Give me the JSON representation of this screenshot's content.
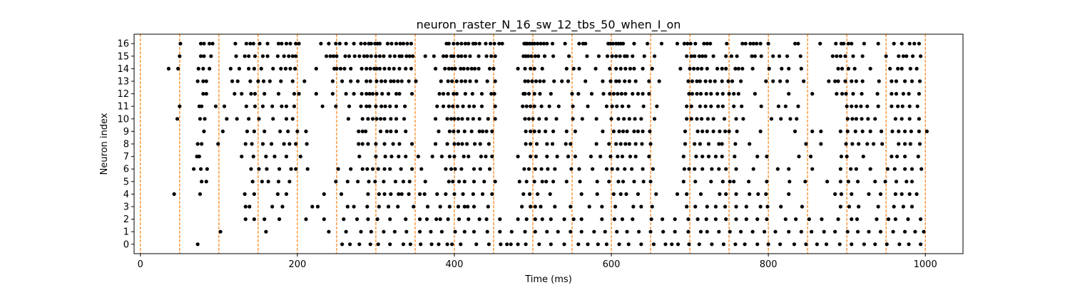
{
  "chart_data": {
    "type": "scatter",
    "title": "neuron_raster_N_16_sw_12_tbs_50_when_I_on",
    "xlabel": "Time (ms)",
    "ylabel": "Neuron index",
    "xlim": [
      -8,
      1048
    ],
    "ylim": [
      -0.75,
      16.75
    ],
    "x_ticks": [
      0,
      200,
      400,
      600,
      800,
      1000
    ],
    "y_ticks": [
      0,
      1,
      2,
      3,
      4,
      5,
      6,
      7,
      8,
      9,
      10,
      11,
      12,
      13,
      14,
      15,
      16
    ],
    "grid": false,
    "legend": "none",
    "marker_color": "#000000",
    "vline_color": "#ff7f0e",
    "vlines": [
      0,
      50,
      100,
      150,
      200,
      250,
      300,
      350,
      400,
      450,
      500,
      550,
      600,
      650,
      700,
      750,
      800,
      850,
      900,
      950,
      1000
    ],
    "spikes": [
      {
        "neuron": 16,
        "times": [
          51,
          77,
          81,
          88,
          92,
          121,
          135,
          140,
          144,
          152,
          162,
          176,
          180,
          186,
          191,
          198,
          202,
          230,
          240,
          249,
          254,
          262,
          272,
          281,
          286,
          291,
          294,
          299,
          302,
          305,
          315,
          320,
          326,
          331,
          335,
          340,
          345,
          390,
          393,
          399,
          404,
          409,
          414,
          418,
          424,
          427,
          432,
          440,
          446,
          451,
          457,
          461,
          489,
          491,
          493,
          496,
          499,
          502,
          506,
          510,
          514,
          518,
          525,
          541,
          559,
          564,
          567,
          596,
          599,
          602,
          606,
          609,
          612,
          615,
          629,
          646,
          664,
          684,
          693,
          697,
          701,
          707,
          718,
          722,
          726,
          747,
          767,
          771,
          777,
          781,
          785,
          790,
          800,
          834,
          838,
          866,
          886,
          893,
          896,
          902,
          906,
          922,
          940,
          960,
          970,
          980,
          986,
          992
        ]
      },
      {
        "neuron": 15,
        "times": [
          50,
          77,
          81,
          90,
          122,
          133,
          138,
          146,
          156,
          162,
          175,
          183,
          189,
          194,
          198,
          237,
          242,
          246,
          250,
          261,
          266,
          273,
          279,
          285,
          289,
          294,
          300,
          305,
          310,
          318,
          324,
          330,
          333,
          339,
          343,
          347,
          363,
          374,
          386,
          390,
          396,
          399,
          405,
          409,
          414,
          420,
          431,
          441,
          447,
          452,
          488,
          491,
          494,
          498,
          503,
          507,
          515,
          526,
          546,
          569,
          584,
          595,
          601,
          606,
          611,
          617,
          620,
          627,
          642,
          655,
          696,
          702,
          706,
          712,
          716,
          720,
          730,
          746,
          753,
          760,
          779,
          783,
          791,
          806,
          814,
          824,
          841,
          882,
          887,
          892,
          898,
          908,
          920,
          950,
          966,
          972,
          976,
          984,
          994
        ]
      },
      {
        "neuron": 14,
        "times": [
          36,
          48,
          74,
          80,
          88,
          115,
          126,
          138,
          145,
          154,
          169,
          179,
          185,
          191,
          197,
          224,
          247,
          250,
          255,
          260,
          268,
          282,
          288,
          293,
          298,
          301,
          305,
          311,
          317,
          323,
          330,
          338,
          345,
          376,
          388,
          393,
          397,
          401,
          408,
          412,
          417,
          422,
          426,
          431,
          445,
          450,
          481,
          490,
          497,
          502,
          512,
          543,
          552,
          559,
          580,
          598,
          606,
          612,
          618,
          624,
          629,
          640,
          652,
          688,
          700,
          705,
          710,
          715,
          722,
          735,
          741,
          746,
          758,
          762,
          767,
          780,
          801,
          817,
          826,
          842,
          889,
          894,
          902,
          910,
          930,
          955,
          965,
          970,
          981,
          989
        ]
      },
      {
        "neuron": 13,
        "times": [
          73,
          80,
          84,
          117,
          124,
          140,
          150,
          157,
          165,
          179,
          194,
          209,
          245,
          257,
          268,
          277,
          288,
          293,
          301,
          307,
          312,
          319,
          323,
          328,
          333,
          342,
          351,
          383,
          392,
          397,
          403,
          409,
          414,
          420,
          428,
          442,
          452,
          490,
          494,
          499,
          504,
          509,
          514,
          527,
          537,
          545,
          567,
          589,
          599,
          606,
          610,
          617,
          623,
          631,
          648,
          661,
          698,
          703,
          709,
          713,
          720,
          726,
          732,
          741,
          749,
          754,
          765,
          797,
          806,
          815,
          824,
          845,
          877,
          885,
          889,
          898,
          906,
          912,
          920,
          941,
          957,
          963,
          974,
          983,
          993
        ]
      },
      {
        "neuron": 12,
        "times": [
          80,
          84,
          120,
          129,
          141,
          146,
          158,
          176,
          196,
          202,
          224,
          245,
          262,
          272,
          282,
          288,
          292,
          296,
          301,
          308,
          316,
          326,
          330,
          346,
          381,
          386,
          392,
          399,
          403,
          414,
          423,
          435,
          447,
          451,
          488,
          490,
          495,
          502,
          509,
          523,
          550,
          558,
          575,
          590,
          598,
          603,
          608,
          613,
          618,
          627,
          634,
          640,
          648,
          699,
          703,
          709,
          714,
          721,
          727,
          735,
          742,
          750,
          756,
          762,
          783,
          826,
          856,
          887,
          894,
          899,
          908,
          919,
          939,
          957,
          963,
          972,
          979,
          992
        ]
      },
      {
        "neuron": 11,
        "times": [
          50,
          75,
          78,
          96,
          107,
          135,
          146,
          156,
          168,
          180,
          186,
          196,
          232,
          249,
          266,
          281,
          288,
          292,
          300,
          307,
          312,
          318,
          326,
          337,
          378,
          386,
          393,
          398,
          404,
          411,
          419,
          425,
          435,
          452,
          487,
          492,
          497,
          502,
          511,
          521,
          533,
          551,
          570,
          594,
          601,
          607,
          614,
          622,
          641,
          658,
          696,
          702,
          713,
          720,
          727,
          736,
          742,
          756,
          766,
          791,
          813,
          822,
          838,
          900,
          906,
          912,
          918,
          926,
          940,
          957,
          965,
          971,
          980,
          990
        ]
      },
      {
        "neuron": 10,
        "times": [
          47,
          76,
          82,
          110,
          123,
          138,
          151,
          169,
          186,
          194,
          265,
          283,
          290,
          296,
          301,
          306,
          311,
          319,
          326,
          336,
          376,
          391,
          396,
          400,
          405,
          410,
          417,
          424,
          432,
          443,
          452,
          490,
          495,
          500,
          508,
          517,
          530,
          551,
          563,
          581,
          600,
          609,
          616,
          623,
          630,
          638,
          655,
          696,
          702,
          709,
          715,
          723,
          730,
          744,
          759,
          768,
          804,
          816,
          828,
          836,
          901,
          907,
          912,
          919,
          927,
          936,
          962,
          970,
          980,
          992
        ]
      },
      {
        "neuron": 9,
        "times": [
          81,
          105,
          136,
          145,
          158,
          178,
          188,
          200,
          211,
          278,
          283,
          287,
          306,
          314,
          319,
          326,
          338,
          380,
          394,
          399,
          405,
          413,
          422,
          432,
          436,
          441,
          448,
          491,
          497,
          502,
          508,
          516,
          526,
          543,
          554,
          589,
          603,
          610,
          615,
          620,
          629,
          634,
          640,
          649,
          694,
          710,
          716,
          722,
          730,
          738,
          745,
          750,
          760,
          790,
          834,
          856,
          867,
          892,
          901,
          911,
          920,
          930,
          944,
          958,
          966,
          974,
          982,
          992,
          1002
        ]
      },
      {
        "neuron": 8,
        "times": [
          73,
          78,
          99,
          134,
          142,
          156,
          167,
          183,
          190,
          198,
          212,
          278,
          283,
          290,
          300,
          311,
          322,
          330,
          346,
          376,
          391,
          400,
          405,
          410,
          416,
          426,
          433,
          444,
          491,
          497,
          505,
          518,
          525,
          542,
          548,
          581,
          597,
          606,
          612,
          618,
          623,
          631,
          639,
          650,
          694,
          706,
          713,
          724,
          737,
          741,
          758,
          776,
          848,
          867,
          899,
          907,
          915,
          926,
          934,
          945,
          966,
          974,
          981,
          993
        ]
      },
      {
        "neuron": 7,
        "times": [
          72,
          75,
          129,
          144,
          160,
          171,
          186,
          204,
          279,
          300,
          312,
          320,
          329,
          338,
          354,
          372,
          384,
          394,
          400,
          412,
          418,
          434,
          440,
          448,
          481,
          497,
          504,
          518,
          531,
          545,
          554,
          574,
          586,
          599,
          608,
          614,
          624,
          631,
          648,
          692,
          708,
          716,
          724,
          733,
          741,
          757,
          786,
          798,
          839,
          854,
          893,
          900,
          921,
          957,
          964,
          974,
          991
        ]
      },
      {
        "neuron": 6,
        "times": [
          68,
          77,
          85,
          141,
          151,
          161,
          177,
          192,
          198,
          213,
          252,
          268,
          283,
          289,
          296,
          303,
          311,
          318,
          332,
          346,
          358,
          389,
          396,
          401,
          409,
          425,
          433,
          445,
          489,
          495,
          503,
          511,
          519,
          528,
          549,
          559,
          576,
          594,
          601,
          608,
          617,
          626,
          640,
          653,
          693,
          699,
          706,
          716,
          728,
          737,
          746,
          759,
          781,
          812,
          826,
          856,
          892,
          905,
          912,
          930,
          952,
          961,
          974,
          983,
          995
        ]
      },
      {
        "neuron": 5,
        "times": [
          78,
          84,
          143,
          155,
          163,
          176,
          190,
          249,
          264,
          277,
          291,
          299,
          310,
          325,
          335,
          343,
          363,
          393,
          398,
          406,
          413,
          425,
          438,
          452,
          483,
          492,
          502,
          512,
          517,
          526,
          543,
          560,
          582,
          597,
          609,
          615,
          629,
          641,
          650,
          692,
          707,
          727,
          742,
          751,
          756,
          775,
          798,
          827,
          847,
          875,
          892,
          902,
          914,
          936,
          949,
          963,
          976,
          983
        ]
      },
      {
        "neuron": 4,
        "times": [
          43,
          76,
          133,
          145,
          175,
          186,
          234,
          256,
          290,
          304,
          311,
          319,
          329,
          333,
          342,
          356,
          362,
          378,
          389,
          400,
          411,
          424,
          436,
          448,
          488,
          496,
          506,
          522,
          562,
          582,
          603,
          612,
          619,
          634,
          657,
          684,
          696,
          714,
          738,
          746,
          759,
          776,
          787,
          797,
          826,
          885,
          893,
          906,
          928,
          943,
          962,
          970,
          980,
          989
        ]
      },
      {
        "neuron": 3,
        "times": [
          134,
          139,
          168,
          181,
          219,
          226,
          264,
          272,
          289,
          304,
          316,
          328,
          348,
          366,
          382,
          394,
          405,
          413,
          417,
          425,
          443,
          486,
          497,
          503,
          510,
          528,
          548,
          572,
          588,
          605,
          628,
          638,
          652,
          696,
          707,
          722,
          733,
          745,
          759,
          772,
          790,
          799,
          816,
          843,
          892,
          903,
          915,
          940,
          960,
          972,
          983
        ]
      },
      {
        "neuron": 2,
        "times": [
          134,
          145,
          158,
          177,
          211,
          234,
          259,
          276,
          290,
          302,
          318,
          338,
          356,
          365,
          377,
          382,
          392,
          406,
          418,
          432,
          441,
          458,
          481,
          492,
          503,
          512,
          523,
          540,
          552,
          562,
          588,
          604,
          614,
          627,
          651,
          665,
          681,
          698,
          710,
          721,
          733,
          746,
          759,
          772,
          786,
          798,
          822,
          835,
          852,
          868,
          889,
          906,
          913,
          938,
          953,
          962,
          978,
          994
        ]
      },
      {
        "neuron": 1,
        "times": [
          102,
          160,
          240,
          262,
          281,
          294,
          310,
          324,
          339,
          356,
          370,
          384,
          401,
          413,
          425,
          442,
          458,
          473,
          490,
          503,
          518,
          532,
          548,
          562,
          578,
          592,
          607,
          620,
          635,
          650,
          666,
          681,
          698,
          714,
          722,
          737,
          751,
          765,
          780,
          795,
          809,
          826,
          842,
          855,
          871,
          885,
          901,
          914,
          928,
          943,
          959,
          974,
          987,
          998
        ]
      },
      {
        "neuron": 0,
        "times": [
          73,
          257,
          267,
          279,
          293,
          303,
          318,
          335,
          344,
          357,
          371,
          380,
          391,
          397,
          408,
          428,
          444,
          459,
          467,
          472,
          481,
          491,
          508,
          523,
          540,
          558,
          570,
          583,
          594,
          610,
          622,
          638,
          654,
          669,
          677,
          685,
          699,
          712,
          728,
          743,
          758,
          770,
          786,
          800,
          815,
          833,
          848,
          862,
          874,
          891,
          906,
          922,
          936,
          951,
          967,
          979,
          994
        ]
      }
    ]
  }
}
